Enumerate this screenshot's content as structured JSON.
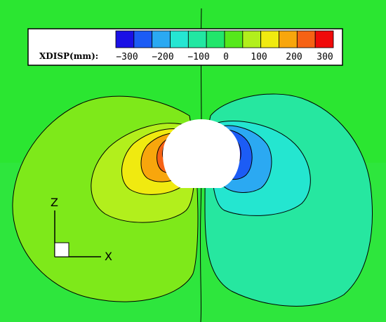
{
  "legend": {
    "title": "XDISP(mm):",
    "tick_labels": [
      "-300",
      "-200",
      "-100",
      "0",
      "100",
      "200",
      "300"
    ],
    "swatch_colors": [
      "#1a10e6",
      "#1c5cf5",
      "#2ba9f2",
      "#25e6d2",
      "#22e7a2",
      "#22e66b",
      "#56e81c",
      "#b2ef1c",
      "#f0ea10",
      "#f8a60c",
      "#f66214",
      "#f00a0a"
    ]
  },
  "axes_triad": {
    "z_label": "Z",
    "x_label": "X"
  },
  "colors": {
    "background_field": "#2be631",
    "left_outer_band": "#7ee91a",
    "left_mid_band": "#b2ef1c",
    "left_band_3": "#f0ea10",
    "left_band_4": "#f8a60c",
    "left_band_5": "#f66214",
    "left_core": "#f00a0a",
    "right_outer_band": "#26e7a0",
    "right_mid_band": "#24e6d0",
    "right_band_3": "#2ba9f2",
    "right_band_4": "#1c5cf5",
    "right_core": "#1a10e6",
    "tunnel_void": "#ffffff",
    "bottom_strip": "#5fe0c8"
  }
}
